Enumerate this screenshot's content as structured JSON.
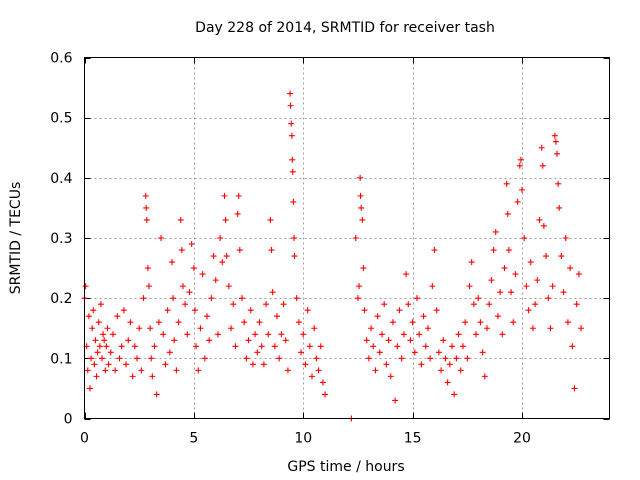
{
  "colors": {
    "points": "#ff0000",
    "background": "#ffffff",
    "grid": "#a0a0a0",
    "axis": "#000000"
  },
  "chart_data": {
    "type": "scatter",
    "title": "Day 228 of 2014, SRMTID for receiver tash",
    "xlabel": "GPS time / hours",
    "ylabel": "SRMTID / TECUs",
    "xlim": [
      0,
      24
    ],
    "ylim": [
      0,
      0.6
    ],
    "xticks": [
      0,
      5,
      10,
      15,
      20
    ],
    "xtick_labels": [
      "0",
      "5",
      "10",
      "15",
      "20"
    ],
    "yticks": [
      0,
      0.1,
      0.2,
      0.3,
      0.4,
      0.5,
      0.6
    ],
    "ytick_labels": [
      "0",
      "0.1",
      "0.2",
      "0.3",
      "0.4",
      "0.5",
      "0.6"
    ],
    "grid": true,
    "marker": "plus",
    "series": [
      {
        "name": "SRMTID",
        "points": [
          [
            0.0,
            0.2
          ],
          [
            0.05,
            0.22
          ],
          [
            0.1,
            0.12
          ],
          [
            0.15,
            0.08
          ],
          [
            0.2,
            0.17
          ],
          [
            0.25,
            0.05
          ],
          [
            0.3,
            0.1
          ],
          [
            0.35,
            0.15
          ],
          [
            0.4,
            0.18
          ],
          [
            0.45,
            0.09
          ],
          [
            0.5,
            0.13
          ],
          [
            0.55,
            0.07
          ],
          [
            0.6,
            0.11
          ],
          [
            0.65,
            0.16
          ],
          [
            0.7,
            0.12
          ],
          [
            0.75,
            0.19
          ],
          [
            0.8,
            0.1
          ],
          [
            0.85,
            0.14
          ],
          [
            0.9,
            0.13
          ],
          [
            0.95,
            0.08
          ],
          [
            1.0,
            0.12
          ],
          [
            1.05,
            0.15
          ],
          [
            1.1,
            0.09
          ],
          [
            1.2,
            0.11
          ],
          [
            1.3,
            0.14
          ],
          [
            1.4,
            0.08
          ],
          [
            1.5,
            0.17
          ],
          [
            1.6,
            0.1
          ],
          [
            1.7,
            0.12
          ],
          [
            1.8,
            0.18
          ],
          [
            1.9,
            0.09
          ],
          [
            2.0,
            0.13
          ],
          [
            2.1,
            0.16
          ],
          [
            2.2,
            0.07
          ],
          [
            2.3,
            0.12
          ],
          [
            2.4,
            0.1
          ],
          [
            2.5,
            0.15
          ],
          [
            2.6,
            0.08
          ],
          [
            2.7,
            0.2
          ],
          [
            2.8,
            0.37
          ],
          [
            2.82,
            0.35
          ],
          [
            2.85,
            0.33
          ],
          [
            2.9,
            0.25
          ],
          [
            2.95,
            0.22
          ],
          [
            3.0,
            0.15
          ],
          [
            3.05,
            0.1
          ],
          [
            3.1,
            0.07
          ],
          [
            3.2,
            0.12
          ],
          [
            3.3,
            0.04
          ],
          [
            3.4,
            0.16
          ],
          [
            3.5,
            0.3
          ],
          [
            3.6,
            0.14
          ],
          [
            3.7,
            0.09
          ],
          [
            3.8,
            0.18
          ],
          [
            3.9,
            0.11
          ],
          [
            4.0,
            0.26
          ],
          [
            4.05,
            0.2
          ],
          [
            4.1,
            0.13
          ],
          [
            4.2,
            0.08
          ],
          [
            4.3,
            0.16
          ],
          [
            4.4,
            0.33
          ],
          [
            4.45,
            0.28
          ],
          [
            4.5,
            0.22
          ],
          [
            4.6,
            0.19
          ],
          [
            4.7,
            0.14
          ],
          [
            4.8,
            0.21
          ],
          [
            4.9,
            0.29
          ],
          [
            5.0,
            0.25
          ],
          [
            5.05,
            0.18
          ],
          [
            5.1,
            0.12
          ],
          [
            5.2,
            0.08
          ],
          [
            5.3,
            0.15
          ],
          [
            5.4,
            0.24
          ],
          [
            5.5,
            0.1
          ],
          [
            5.6,
            0.17
          ],
          [
            5.7,
            0.13
          ],
          [
            5.8,
            0.2
          ],
          [
            5.9,
            0.27
          ],
          [
            6.0,
            0.23
          ],
          [
            6.1,
            0.14
          ],
          [
            6.2,
            0.3
          ],
          [
            6.3,
            0.26
          ],
          [
            6.4,
            0.37
          ],
          [
            6.45,
            0.33
          ],
          [
            6.5,
            0.27
          ],
          [
            6.6,
            0.22
          ],
          [
            6.7,
            0.15
          ],
          [
            6.8,
            0.19
          ],
          [
            6.9,
            0.12
          ],
          [
            7.0,
            0.34
          ],
          [
            7.05,
            0.37
          ],
          [
            7.1,
            0.28
          ],
          [
            7.2,
            0.2
          ],
          [
            7.3,
            0.16
          ],
          [
            7.4,
            0.1
          ],
          [
            7.5,
            0.13
          ],
          [
            7.6,
            0.18
          ],
          [
            7.7,
            0.09
          ],
          [
            7.8,
            0.14
          ],
          [
            7.9,
            0.11
          ],
          [
            8.0,
            0.16
          ],
          [
            8.1,
            0.12
          ],
          [
            8.2,
            0.09
          ],
          [
            8.3,
            0.19
          ],
          [
            8.4,
            0.14
          ],
          [
            8.5,
            0.33
          ],
          [
            8.55,
            0.28
          ],
          [
            8.6,
            0.21
          ],
          [
            8.7,
            0.12
          ],
          [
            8.8,
            0.17
          ],
          [
            8.9,
            0.1
          ],
          [
            9.0,
            0.14
          ],
          [
            9.1,
            0.19
          ],
          [
            9.2,
            0.13
          ],
          [
            9.3,
            0.08
          ],
          [
            9.4,
            0.54
          ],
          [
            9.42,
            0.52
          ],
          [
            9.45,
            0.49
          ],
          [
            9.48,
            0.47
          ],
          [
            9.5,
            0.43
          ],
          [
            9.52,
            0.41
          ],
          [
            9.55,
            0.36
          ],
          [
            9.58,
            0.3
          ],
          [
            9.6,
            0.27
          ],
          [
            9.7,
            0.2
          ],
          [
            9.8,
            0.16
          ],
          [
            9.9,
            0.11
          ],
          [
            10.0,
            0.14
          ],
          [
            10.1,
            0.09
          ],
          [
            10.2,
            0.18
          ],
          [
            10.3,
            0.12
          ],
          [
            10.4,
            0.07
          ],
          [
            10.5,
            0.15
          ],
          [
            10.6,
            0.1
          ],
          [
            10.7,
            0.08
          ],
          [
            10.8,
            0.12
          ],
          [
            10.9,
            0.06
          ],
          [
            11.0,
            0.04
          ],
          [
            12.2,
            0.0
          ],
          [
            12.4,
            0.3
          ],
          [
            12.5,
            0.2
          ],
          [
            12.55,
            0.22
          ],
          [
            12.6,
            0.4
          ],
          [
            12.62,
            0.37
          ],
          [
            12.65,
            0.35
          ],
          [
            12.7,
            0.33
          ],
          [
            12.75,
            0.25
          ],
          [
            12.8,
            0.18
          ],
          [
            12.9,
            0.13
          ],
          [
            13.0,
            0.1
          ],
          [
            13.1,
            0.15
          ],
          [
            13.2,
            0.12
          ],
          [
            13.3,
            0.08
          ],
          [
            13.4,
            0.17
          ],
          [
            13.5,
            0.11
          ],
          [
            13.6,
            0.14
          ],
          [
            13.7,
            0.19
          ],
          [
            13.8,
            0.09
          ],
          [
            13.9,
            0.13
          ],
          [
            14.0,
            0.07
          ],
          [
            14.1,
            0.16
          ],
          [
            14.2,
            0.03
          ],
          [
            14.3,
            0.12
          ],
          [
            14.4,
            0.18
          ],
          [
            14.5,
            0.1
          ],
          [
            14.6,
            0.14
          ],
          [
            14.7,
            0.24
          ],
          [
            14.8,
            0.19
          ],
          [
            14.9,
            0.13
          ],
          [
            15.0,
            0.16
          ],
          [
            15.1,
            0.11
          ],
          [
            15.2,
            0.2
          ],
          [
            15.3,
            0.14
          ],
          [
            15.4,
            0.09
          ],
          [
            15.5,
            0.17
          ],
          [
            15.6,
            0.12
          ],
          [
            15.7,
            0.15
          ],
          [
            15.8,
            0.1
          ],
          [
            15.9,
            0.22
          ],
          [
            16.0,
            0.28
          ],
          [
            16.1,
            0.18
          ],
          [
            16.2,
            0.11
          ],
          [
            16.3,
            0.08
          ],
          [
            16.4,
            0.13
          ],
          [
            16.5,
            0.1
          ],
          [
            16.6,
            0.06
          ],
          [
            16.7,
            0.09
          ],
          [
            16.8,
            0.12
          ],
          [
            16.9,
            0.04
          ],
          [
            17.0,
            0.1
          ],
          [
            17.1,
            0.14
          ],
          [
            17.2,
            0.08
          ],
          [
            17.3,
            0.12
          ],
          [
            17.4,
            0.16
          ],
          [
            17.5,
            0.1
          ],
          [
            17.6,
            0.22
          ],
          [
            17.7,
            0.26
          ],
          [
            17.8,
            0.19
          ],
          [
            17.9,
            0.14
          ],
          [
            18.0,
            0.2
          ],
          [
            18.1,
            0.16
          ],
          [
            18.2,
            0.11
          ],
          [
            18.3,
            0.07
          ],
          [
            18.4,
            0.15
          ],
          [
            18.5,
            0.19
          ],
          [
            18.6,
            0.23
          ],
          [
            18.7,
            0.28
          ],
          [
            18.8,
            0.31
          ],
          [
            18.9,
            0.17
          ],
          [
            19.0,
            0.21
          ],
          [
            19.1,
            0.14
          ],
          [
            19.2,
            0.25
          ],
          [
            19.3,
            0.39
          ],
          [
            19.35,
            0.34
          ],
          [
            19.4,
            0.28
          ],
          [
            19.5,
            0.21
          ],
          [
            19.6,
            0.16
          ],
          [
            19.7,
            0.24
          ],
          [
            19.8,
            0.36
          ],
          [
            19.9,
            0.42
          ],
          [
            19.95,
            0.43
          ],
          [
            20.0,
            0.38
          ],
          [
            20.1,
            0.3
          ],
          [
            20.2,
            0.22
          ],
          [
            20.3,
            0.18
          ],
          [
            20.4,
            0.26
          ],
          [
            20.5,
            0.15
          ],
          [
            20.6,
            0.19
          ],
          [
            20.7,
            0.23
          ],
          [
            20.8,
            0.33
          ],
          [
            20.9,
            0.45
          ],
          [
            20.95,
            0.42
          ],
          [
            21.0,
            0.32
          ],
          [
            21.1,
            0.27
          ],
          [
            21.2,
            0.2
          ],
          [
            21.3,
            0.15
          ],
          [
            21.4,
            0.22
          ],
          [
            21.5,
            0.47
          ],
          [
            21.55,
            0.46
          ],
          [
            21.6,
            0.44
          ],
          [
            21.65,
            0.39
          ],
          [
            21.7,
            0.35
          ],
          [
            21.8,
            0.27
          ],
          [
            21.9,
            0.21
          ],
          [
            22.0,
            0.3
          ],
          [
            22.1,
            0.16
          ],
          [
            22.2,
            0.25
          ],
          [
            22.3,
            0.12
          ],
          [
            22.4,
            0.05
          ],
          [
            22.5,
            0.19
          ],
          [
            22.6,
            0.24
          ],
          [
            22.7,
            0.15
          ]
        ]
      }
    ]
  }
}
